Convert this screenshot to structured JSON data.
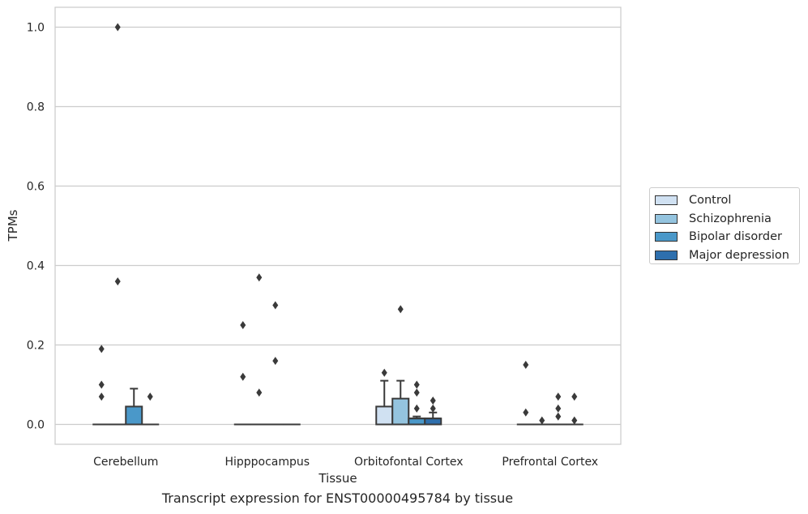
{
  "caption": "Transcript expression for ENST00000495784 by tissue",
  "chart_data": {
    "type": "box",
    "xlabel": "Tissue",
    "ylabel": "TPMs",
    "ylim": [
      -0.05,
      1.05
    ],
    "yticks": [
      0.0,
      0.2,
      0.4,
      0.6,
      0.8,
      1.0
    ],
    "ytick_labels": [
      "0.0",
      "0.2",
      "0.4",
      "0.6",
      "0.8",
      "1.0"
    ],
    "grid": "horizontal",
    "legend_position": "center-right, outside plot",
    "categories": [
      "Cerebellum",
      "Hipppocampus",
      "Orbitofontal Cortex",
      "Prefrontal Cortex"
    ],
    "series": [
      {
        "name": "Control",
        "color": "#d0e1f2",
        "boxes": [
          {
            "q1": 0,
            "median": 0,
            "q3": 0,
            "whisker_low": 0,
            "whisker_high": 0,
            "outliers": [
              0.19,
              0.1,
              0.07
            ]
          },
          {
            "q1": 0,
            "median": 0,
            "q3": 0,
            "whisker_low": 0,
            "whisker_high": 0,
            "outliers": [
              0.25,
              0.12
            ]
          },
          {
            "q1": 0,
            "median": 0,
            "q3": 0.045,
            "whisker_low": 0,
            "whisker_high": 0.11,
            "outliers": [
              0.13
            ]
          },
          {
            "q1": 0,
            "median": 0,
            "q3": 0,
            "whisker_low": 0,
            "whisker_high": 0,
            "outliers": [
              0.15,
              0.03
            ]
          }
        ]
      },
      {
        "name": "Schizophrenia",
        "color": "#94c4df",
        "boxes": [
          {
            "q1": 0,
            "median": 0,
            "q3": 0,
            "whisker_low": 0,
            "whisker_high": 0,
            "outliers": [
              1.0,
              0.36
            ]
          },
          {
            "q1": 0,
            "median": 0,
            "q3": 0,
            "whisker_low": 0,
            "whisker_high": 0,
            "outliers": [
              0.37,
              0.08
            ]
          },
          {
            "q1": 0,
            "median": 0,
            "q3": 0.065,
            "whisker_low": 0,
            "whisker_high": 0.11,
            "outliers": [
              0.29
            ]
          },
          {
            "q1": 0,
            "median": 0,
            "q3": 0,
            "whisker_low": 0,
            "whisker_high": 0,
            "outliers": [
              0.01
            ]
          }
        ]
      },
      {
        "name": "Bipolar disorder",
        "color": "#4a98c9",
        "boxes": [
          {
            "q1": 0,
            "median": 0,
            "q3": 0.045,
            "whisker_low": 0,
            "whisker_high": 0.09,
            "outliers": []
          },
          {
            "q1": 0,
            "median": 0,
            "q3": 0,
            "whisker_low": 0,
            "whisker_high": 0,
            "outliers": [
              0.3,
              0.16
            ]
          },
          {
            "q1": 0,
            "median": 0.015,
            "q3": 0.015,
            "whisker_low": 0,
            "whisker_high": 0.02,
            "outliers": [
              0.1,
              0.08,
              0.04
            ]
          },
          {
            "q1": 0,
            "median": 0,
            "q3": 0,
            "whisker_low": 0,
            "whisker_high": 0,
            "outliers": [
              0.07,
              0.04,
              0.02
            ]
          }
        ]
      },
      {
        "name": "Major depression",
        "color": "#2e6fad",
        "boxes": [
          {
            "q1": 0,
            "median": 0,
            "q3": 0,
            "whisker_low": 0,
            "whisker_high": 0,
            "outliers": [
              0.07
            ]
          },
          {
            "q1": 0,
            "median": 0,
            "q3": 0,
            "whisker_low": 0,
            "whisker_high": 0,
            "outliers": []
          },
          {
            "q1": 0,
            "median": 0.015,
            "q3": 0.015,
            "whisker_low": 0,
            "whisker_high": 0.03,
            "outliers": [
              0.06,
              0.04
            ]
          },
          {
            "q1": 0,
            "median": 0,
            "q3": 0,
            "whisker_low": 0,
            "whisker_high": 0,
            "outliers": [
              0.07,
              0.01
            ]
          }
        ]
      }
    ]
  }
}
